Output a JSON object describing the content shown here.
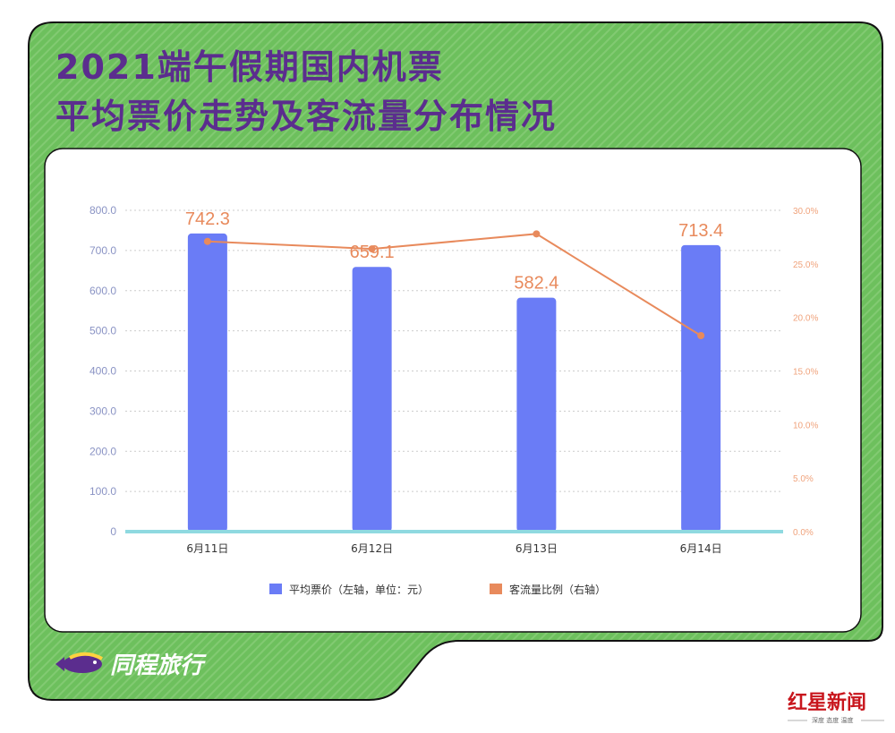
{
  "title": {
    "line1": "2021端午假期国内机票",
    "line2": "平均票价走势及客流量分布情况"
  },
  "colors": {
    "frame_green": "#6dc05d",
    "bar_blue": "#6a7cf6",
    "line_orange": "#e88a5c",
    "baseline_cyan": "#8fd9e0",
    "title_purple": "#5b2d8e"
  },
  "chart_data": {
    "type": "bar",
    "categories": [
      "6月11日",
      "6月12日",
      "6月13日",
      "6月14日"
    ],
    "series": [
      {
        "name": "平均票价（左轴，单位：元）",
        "type": "bar",
        "axis": "left",
        "values": [
          742.3,
          659.1,
          582.4,
          713.4
        ],
        "display_values": [
          "742.3",
          "659.1",
          "582.4",
          "713.4"
        ]
      },
      {
        "name": "客流量比例（右轴）",
        "type": "line",
        "axis": "right",
        "values": [
          27.1,
          26.4,
          27.8,
          18.3
        ]
      }
    ],
    "left_axis": {
      "ylim": [
        0,
        800
      ],
      "ticks": [
        "0",
        "100.0",
        "200.0",
        "300.0",
        "400.0",
        "500.0",
        "600.0",
        "700.0",
        "800.0"
      ]
    },
    "right_axis": {
      "ylim": [
        0,
        30
      ],
      "ticks": [
        "0.0%",
        "5.0%",
        "10.0%",
        "15.0%",
        "20.0%",
        "25.0%",
        "30.0%"
      ]
    },
    "grid": "horizontal dotted",
    "legend_position": "bottom"
  },
  "brand": {
    "name": "同程旅行"
  },
  "source": {
    "name": "红星新闻",
    "tagline": "深度 态度 温度"
  }
}
